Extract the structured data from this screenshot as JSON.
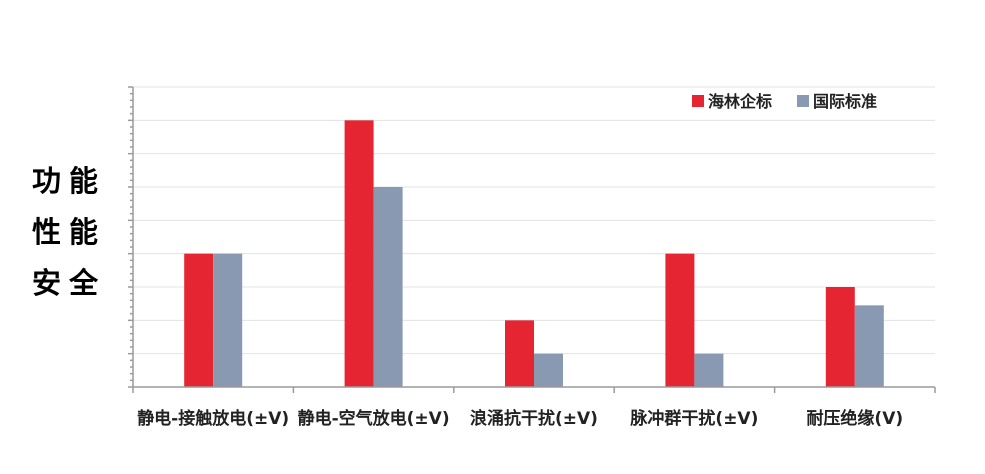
{
  "side_labels": [
    "功能",
    "性能",
    "安全"
  ],
  "colors": {
    "series_a": "#e52532",
    "series_b": "#8899b1"
  },
  "chart_data": {
    "type": "bar",
    "categories": [
      "静电-接触放电(±V)",
      "静电-空气放电(±V)",
      "浪涌抗干扰(±V)",
      "脉冲群干扰(±V)",
      "耐压绝缘(V)"
    ],
    "series": [
      {
        "name": "海林企标",
        "values": [
          4,
          8,
          2,
          4,
          3
        ]
      },
      {
        "name": "国际标准",
        "values": [
          4,
          6,
          1,
          1,
          2.45
        ]
      }
    ],
    "title": "",
    "xlabel": "",
    "ylabel": "",
    "ylim": [
      0,
      9
    ],
    "grid": true,
    "legend": "top-right"
  }
}
